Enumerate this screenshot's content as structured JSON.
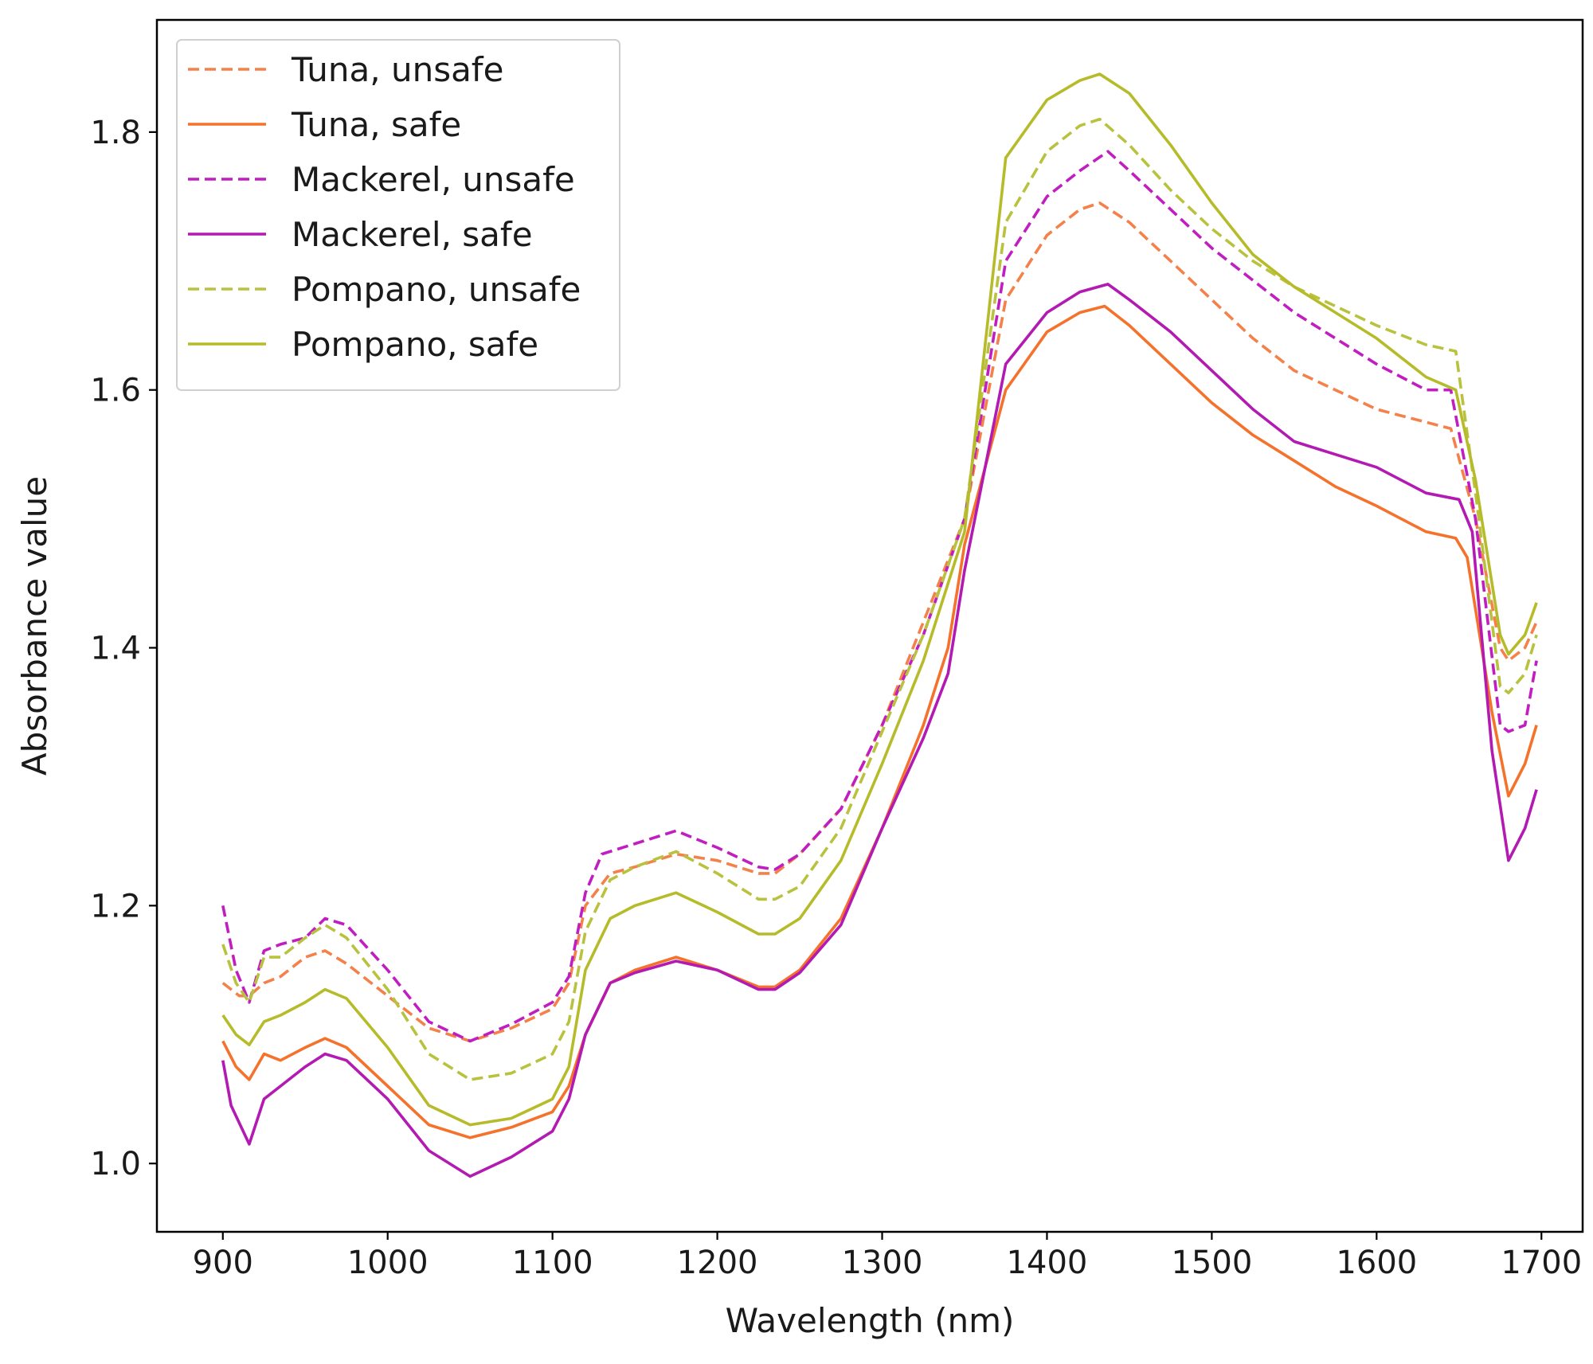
{
  "chart_data": {
    "type": "line",
    "title": "",
    "xlabel": "Wavelength (nm)",
    "ylabel": "Absorbance value",
    "xlim": [
      860,
      1725
    ],
    "ylim": [
      0.947,
      1.887
    ],
    "xticks": [
      900,
      1000,
      1100,
      1200,
      1300,
      1400,
      1500,
      1600,
      1700
    ],
    "yticks": [
      1.0,
      1.2,
      1.4,
      1.6,
      1.8
    ],
    "xtick_labels": [
      "900",
      "1000",
      "1100",
      "1200",
      "1300",
      "1400",
      "1500",
      "1600",
      "1700"
    ],
    "ytick_labels": [
      "1.0",
      "1.2",
      "1.4",
      "1.6",
      "1.8"
    ],
    "grid": false,
    "legend_position": "top-left",
    "series": [
      {
        "name": "Tuna, unsafe",
        "color": "#f4814a",
        "dash": "dashed",
        "x": [
          900,
          910,
          916,
          925,
          935,
          950,
          962,
          975,
          1000,
          1025,
          1050,
          1075,
          1100,
          1110,
          1120,
          1135,
          1150,
          1175,
          1200,
          1225,
          1235,
          1250,
          1275,
          1300,
          1325,
          1350,
          1375,
          1400,
          1420,
          1432,
          1450,
          1475,
          1500,
          1525,
          1550,
          1575,
          1600,
          1630,
          1645,
          1660,
          1675,
          1680,
          1690,
          1697
        ],
        "values": [
          1.14,
          1.13,
          1.13,
          1.14,
          1.145,
          1.16,
          1.165,
          1.155,
          1.13,
          1.105,
          1.095,
          1.105,
          1.12,
          1.14,
          1.2,
          1.225,
          1.23,
          1.24,
          1.235,
          1.225,
          1.225,
          1.24,
          1.275,
          1.34,
          1.42,
          1.5,
          1.67,
          1.72,
          1.74,
          1.745,
          1.73,
          1.7,
          1.67,
          1.64,
          1.615,
          1.6,
          1.585,
          1.575,
          1.57,
          1.5,
          1.4,
          1.39,
          1.4,
          1.42
        ]
      },
      {
        "name": "Tuna, safe",
        "color": "#f4722b",
        "dash": "solid",
        "x": [
          900,
          908,
          916,
          925,
          935,
          950,
          962,
          975,
          1000,
          1025,
          1050,
          1075,
          1100,
          1110,
          1120,
          1135,
          1150,
          1175,
          1200,
          1225,
          1235,
          1250,
          1275,
          1300,
          1325,
          1340,
          1350,
          1375,
          1400,
          1420,
          1435,
          1450,
          1475,
          1500,
          1525,
          1550,
          1575,
          1600,
          1630,
          1648,
          1655,
          1670,
          1680,
          1690,
          1697
        ],
        "values": [
          1.095,
          1.075,
          1.065,
          1.085,
          1.08,
          1.09,
          1.097,
          1.09,
          1.06,
          1.03,
          1.02,
          1.028,
          1.04,
          1.06,
          1.1,
          1.14,
          1.15,
          1.16,
          1.15,
          1.137,
          1.137,
          1.15,
          1.19,
          1.26,
          1.34,
          1.4,
          1.48,
          1.6,
          1.645,
          1.66,
          1.665,
          1.65,
          1.62,
          1.59,
          1.565,
          1.545,
          1.525,
          1.51,
          1.49,
          1.485,
          1.47,
          1.35,
          1.285,
          1.31,
          1.34
        ]
      },
      {
        "name": "Mackerel, unsafe",
        "color": "#c01ec0",
        "dash": "dashed",
        "x": [
          900,
          908,
          916,
          925,
          935,
          950,
          962,
          975,
          1000,
          1025,
          1050,
          1075,
          1100,
          1110,
          1120,
          1130,
          1150,
          1175,
          1200,
          1225,
          1235,
          1250,
          1275,
          1300,
          1325,
          1350,
          1375,
          1400,
          1420,
          1437,
          1450,
          1475,
          1500,
          1525,
          1550,
          1575,
          1600,
          1630,
          1645,
          1660,
          1675,
          1680,
          1690,
          1697
        ],
        "values": [
          1.2,
          1.15,
          1.125,
          1.165,
          1.17,
          1.175,
          1.19,
          1.185,
          1.15,
          1.11,
          1.095,
          1.108,
          1.125,
          1.145,
          1.21,
          1.24,
          1.248,
          1.258,
          1.245,
          1.23,
          1.228,
          1.24,
          1.275,
          1.34,
          1.41,
          1.5,
          1.7,
          1.75,
          1.77,
          1.785,
          1.77,
          1.74,
          1.71,
          1.685,
          1.66,
          1.64,
          1.62,
          1.6,
          1.6,
          1.5,
          1.34,
          1.335,
          1.34,
          1.39
        ]
      },
      {
        "name": "Mackerel, safe",
        "color": "#b21ab2",
        "dash": "solid",
        "x": [
          900,
          905,
          916,
          925,
          935,
          950,
          962,
          975,
          1000,
          1025,
          1050,
          1075,
          1100,
          1110,
          1120,
          1135,
          1150,
          1175,
          1200,
          1225,
          1235,
          1250,
          1275,
          1300,
          1325,
          1340,
          1350,
          1375,
          1400,
          1420,
          1437,
          1450,
          1475,
          1500,
          1525,
          1550,
          1575,
          1600,
          1630,
          1650,
          1658,
          1670,
          1680,
          1690,
          1697
        ],
        "values": [
          1.08,
          1.045,
          1.015,
          1.05,
          1.06,
          1.075,
          1.085,
          1.08,
          1.05,
          1.01,
          0.99,
          1.005,
          1.025,
          1.05,
          1.1,
          1.14,
          1.148,
          1.157,
          1.15,
          1.135,
          1.135,
          1.148,
          1.185,
          1.26,
          1.33,
          1.38,
          1.46,
          1.62,
          1.66,
          1.676,
          1.682,
          1.67,
          1.645,
          1.615,
          1.585,
          1.56,
          1.55,
          1.54,
          1.52,
          1.515,
          1.49,
          1.32,
          1.235,
          1.26,
          1.29
        ]
      },
      {
        "name": "Pompano, unsafe",
        "color": "#b9c23e",
        "dash": "dashed",
        "x": [
          900,
          908,
          916,
          925,
          935,
          950,
          962,
          975,
          1000,
          1025,
          1050,
          1075,
          1100,
          1110,
          1120,
          1135,
          1150,
          1175,
          1200,
          1225,
          1235,
          1250,
          1275,
          1300,
          1325,
          1350,
          1375,
          1400,
          1420,
          1432,
          1450,
          1475,
          1500,
          1525,
          1550,
          1575,
          1600,
          1630,
          1648,
          1660,
          1675,
          1680,
          1690,
          1697
        ],
        "values": [
          1.17,
          1.14,
          1.125,
          1.16,
          1.16,
          1.175,
          1.185,
          1.175,
          1.135,
          1.085,
          1.065,
          1.07,
          1.085,
          1.11,
          1.18,
          1.22,
          1.23,
          1.242,
          1.225,
          1.205,
          1.205,
          1.215,
          1.26,
          1.335,
          1.41,
          1.5,
          1.73,
          1.785,
          1.805,
          1.81,
          1.79,
          1.755,
          1.725,
          1.7,
          1.68,
          1.665,
          1.65,
          1.635,
          1.63,
          1.52,
          1.37,
          1.365,
          1.38,
          1.41
        ]
      },
      {
        "name": "Pompano, safe",
        "color": "#b6bb2a",
        "dash": "solid",
        "x": [
          900,
          908,
          916,
          925,
          935,
          950,
          962,
          975,
          1000,
          1025,
          1050,
          1075,
          1100,
          1110,
          1120,
          1135,
          1150,
          1175,
          1200,
          1225,
          1235,
          1250,
          1275,
          1300,
          1325,
          1350,
          1375,
          1400,
          1420,
          1432,
          1450,
          1475,
          1500,
          1525,
          1550,
          1575,
          1600,
          1630,
          1648,
          1660,
          1675,
          1680,
          1690,
          1697
        ],
        "values": [
          1.115,
          1.1,
          1.092,
          1.11,
          1.115,
          1.125,
          1.135,
          1.128,
          1.09,
          1.045,
          1.03,
          1.035,
          1.05,
          1.075,
          1.15,
          1.19,
          1.2,
          1.21,
          1.195,
          1.178,
          1.178,
          1.19,
          1.235,
          1.31,
          1.39,
          1.49,
          1.78,
          1.825,
          1.84,
          1.845,
          1.83,
          1.79,
          1.745,
          1.705,
          1.68,
          1.66,
          1.64,
          1.61,
          1.6,
          1.53,
          1.41,
          1.395,
          1.41,
          1.435
        ]
      }
    ]
  }
}
